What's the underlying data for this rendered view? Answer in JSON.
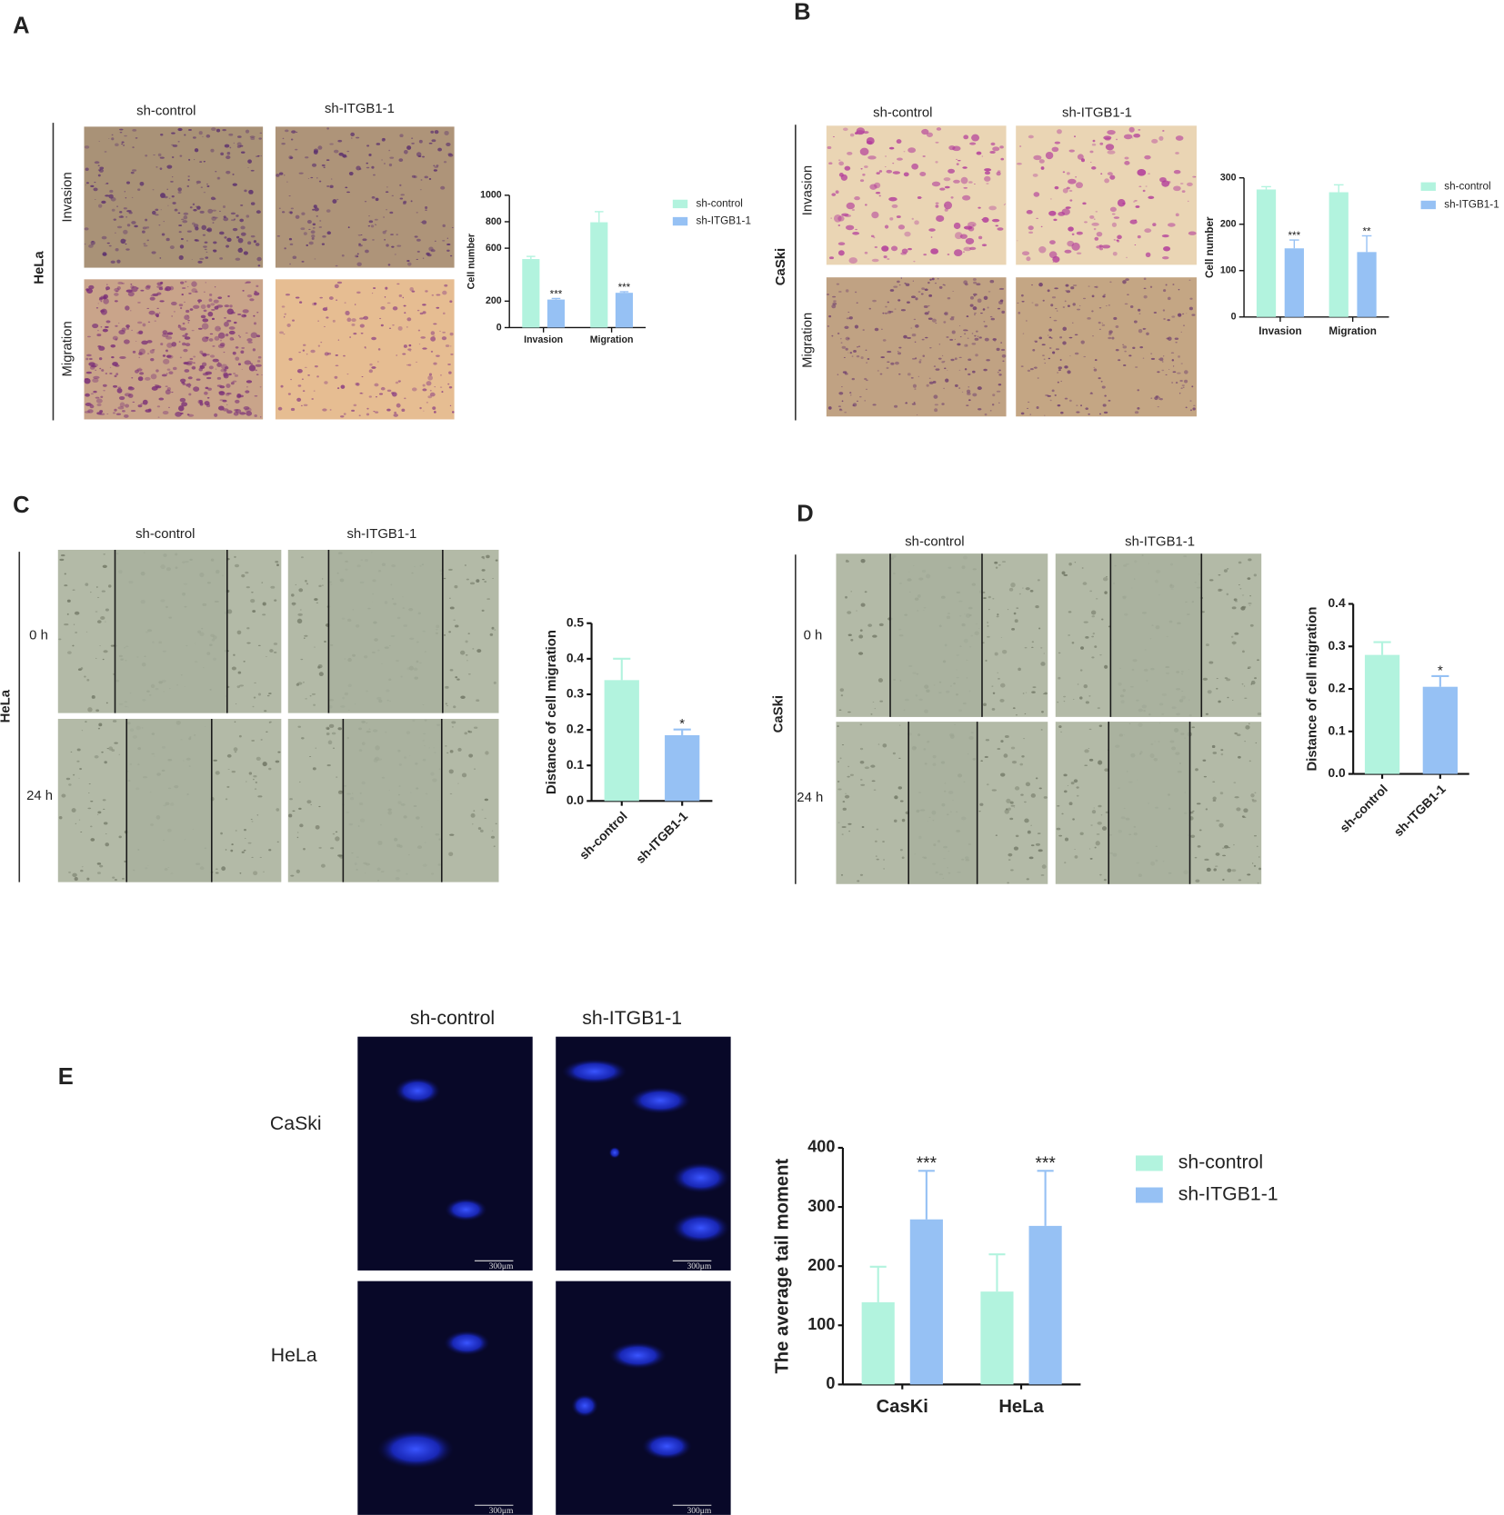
{
  "panels": [
    {
      "letter": "A",
      "columns": [
        "sh-control",
        "sh-ITGB1-1"
      ],
      "rows": [
        "Invasion",
        "Migration"
      ],
      "cell_line": "HeLa"
    },
    {
      "letter": "B",
      "columns": [
        "sh-control",
        "sh-ITGB1-1"
      ],
      "rows": [
        "Invasion",
        "Migration"
      ],
      "cell_line": "CaSki"
    },
    {
      "letter": "C",
      "columns": [
        "sh-control",
        "sh-ITGB1-1"
      ],
      "rows": [
        "0 h",
        "24 h"
      ],
      "cell_line": "HeLa"
    },
    {
      "letter": "D",
      "columns": [
        "sh-control",
        "sh-ITGB1-1"
      ],
      "rows": [
        "0 h",
        "24 h"
      ],
      "cell_line": "CaSki"
    },
    {
      "letter": "E",
      "columns": [
        "sh-control",
        "sh-ITGB1-1"
      ],
      "rows": [
        "CaSki",
        "HeLa"
      ],
      "scale_bar": "300μm"
    }
  ],
  "chart_data": [
    {
      "type": "bar",
      "y_label": "Cell number",
      "categories": [
        "Invasion",
        "Migration"
      ],
      "series": [
        {
          "name": "sh-control",
          "color": "#b2f3de",
          "values": [
            518,
            796
          ],
          "errors": [
            20,
            80
          ]
        },
        {
          "name": "sh-ITGB1-1",
          "color": "#96c1f4",
          "values": [
            212,
            263
          ],
          "errors": [
            8,
            8
          ],
          "significance": [
            "***",
            "***"
          ]
        }
      ],
      "ylim": [
        0,
        1000
      ],
      "yticks": [
        0,
        200,
        600,
        800,
        1000
      ]
    },
    {
      "type": "bar",
      "y_label": "Cell number",
      "categories": [
        "Invasion",
        "Migration"
      ],
      "series": [
        {
          "name": "sh-control",
          "color": "#b2f3de",
          "values": [
            275,
            269
          ],
          "errors": [
            6,
            16
          ]
        },
        {
          "name": "sh-ITGB1-1",
          "color": "#96c1f4",
          "values": [
            148,
            140
          ],
          "errors": [
            18,
            35
          ],
          "significance": [
            "***",
            "**"
          ]
        }
      ],
      "ylim": [
        0,
        300
      ],
      "yticks": [
        0,
        100,
        200,
        300
      ]
    },
    {
      "type": "bar",
      "y_label": "Distance of cell migration",
      "categories": [
        "sh-control",
        "sh-ITGB1-1"
      ],
      "values": [
        0.34,
        0.185
      ],
      "errors": [
        0.06,
        0.016
      ],
      "colors": [
        "#b2f3de",
        "#96c1f4"
      ],
      "significance": [
        null,
        "*"
      ],
      "ylim": [
        0,
        0.5
      ],
      "yticks": [
        {
          "value": 0,
          "label": "0.0"
        },
        0.1,
        0.2,
        0.3,
        0.4,
        0.5
      ]
    },
    {
      "type": "bar",
      "y_label": "Distance of cell migration",
      "categories": [
        "sh-control",
        "sh-ITGB1-1"
      ],
      "values": [
        0.28,
        0.205
      ],
      "errors": [
        0.03,
        0.025
      ],
      "colors": [
        "#b2f3de",
        "#96c1f4"
      ],
      "significance": [
        null,
        "*"
      ],
      "ylim": [
        0,
        0.4
      ],
      "yticks": [
        {
          "value": 0,
          "label": "0.0"
        },
        0.1,
        0.2,
        0.3,
        0.4
      ]
    },
    {
      "type": "bar",
      "y_label": "The average tail moment",
      "categories": [
        "CasKi",
        "HeLa"
      ],
      "series": [
        {
          "name": "sh-control",
          "color": "#b2f3de",
          "values": [
            139,
            157
          ],
          "errors": [
            60,
            63
          ]
        },
        {
          "name": "sh-ITGB1-1",
          "color": "#96c1f4",
          "values": [
            279,
            268
          ],
          "errors": [
            82,
            93
          ],
          "significance": [
            "***",
            "***"
          ]
        }
      ],
      "ylim": [
        0,
        400
      ],
      "yticks": [
        0,
        100,
        200,
        300,
        400
      ]
    }
  ]
}
